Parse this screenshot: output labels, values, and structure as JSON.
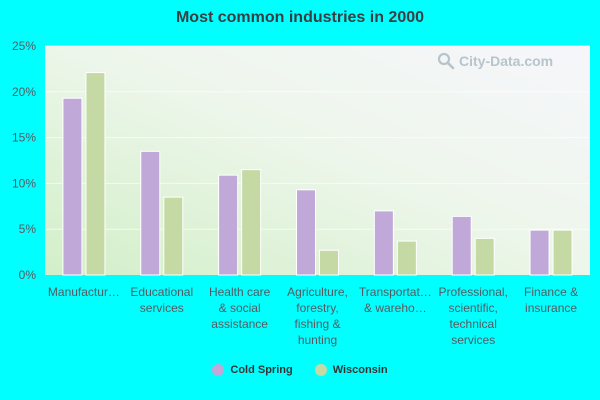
{
  "chart_data": {
    "type": "bar",
    "title": "Most common industries in 2000",
    "xlabel": "",
    "ylabel": "",
    "ylim": [
      0,
      25
    ],
    "yticks": [
      "0%",
      "5%",
      "10%",
      "15%",
      "20%",
      "25%"
    ],
    "ytick_values": [
      0,
      5,
      10,
      15,
      20,
      25
    ],
    "grid": true,
    "legend_position": "bottom",
    "categories": [
      [
        "Manufactur…"
      ],
      [
        "Educational",
        "services"
      ],
      [
        "Health care",
        "& social",
        "assistance"
      ],
      [
        "Agriculture,",
        "forestry,",
        "fishing &",
        "hunting"
      ],
      [
        "Transportat…",
        "& wareho…"
      ],
      [
        "Professional,",
        "scientific,",
        "technical",
        "services"
      ],
      [
        "Finance &",
        "insurance"
      ]
    ],
    "series": [
      {
        "name": "Cold Spring",
        "color": "#c0a8d9",
        "values": [
          19.3,
          13.5,
          10.9,
          9.3,
          7.0,
          6.4,
          4.9
        ]
      },
      {
        "name": "Wisconsin",
        "color": "#c5d9a5",
        "values": [
          22.1,
          8.5,
          11.5,
          2.7,
          3.7,
          4.0,
          4.9
        ]
      }
    ]
  },
  "watermark": {
    "text": "City-Data.com",
    "icon": "magnifier-icon"
  }
}
